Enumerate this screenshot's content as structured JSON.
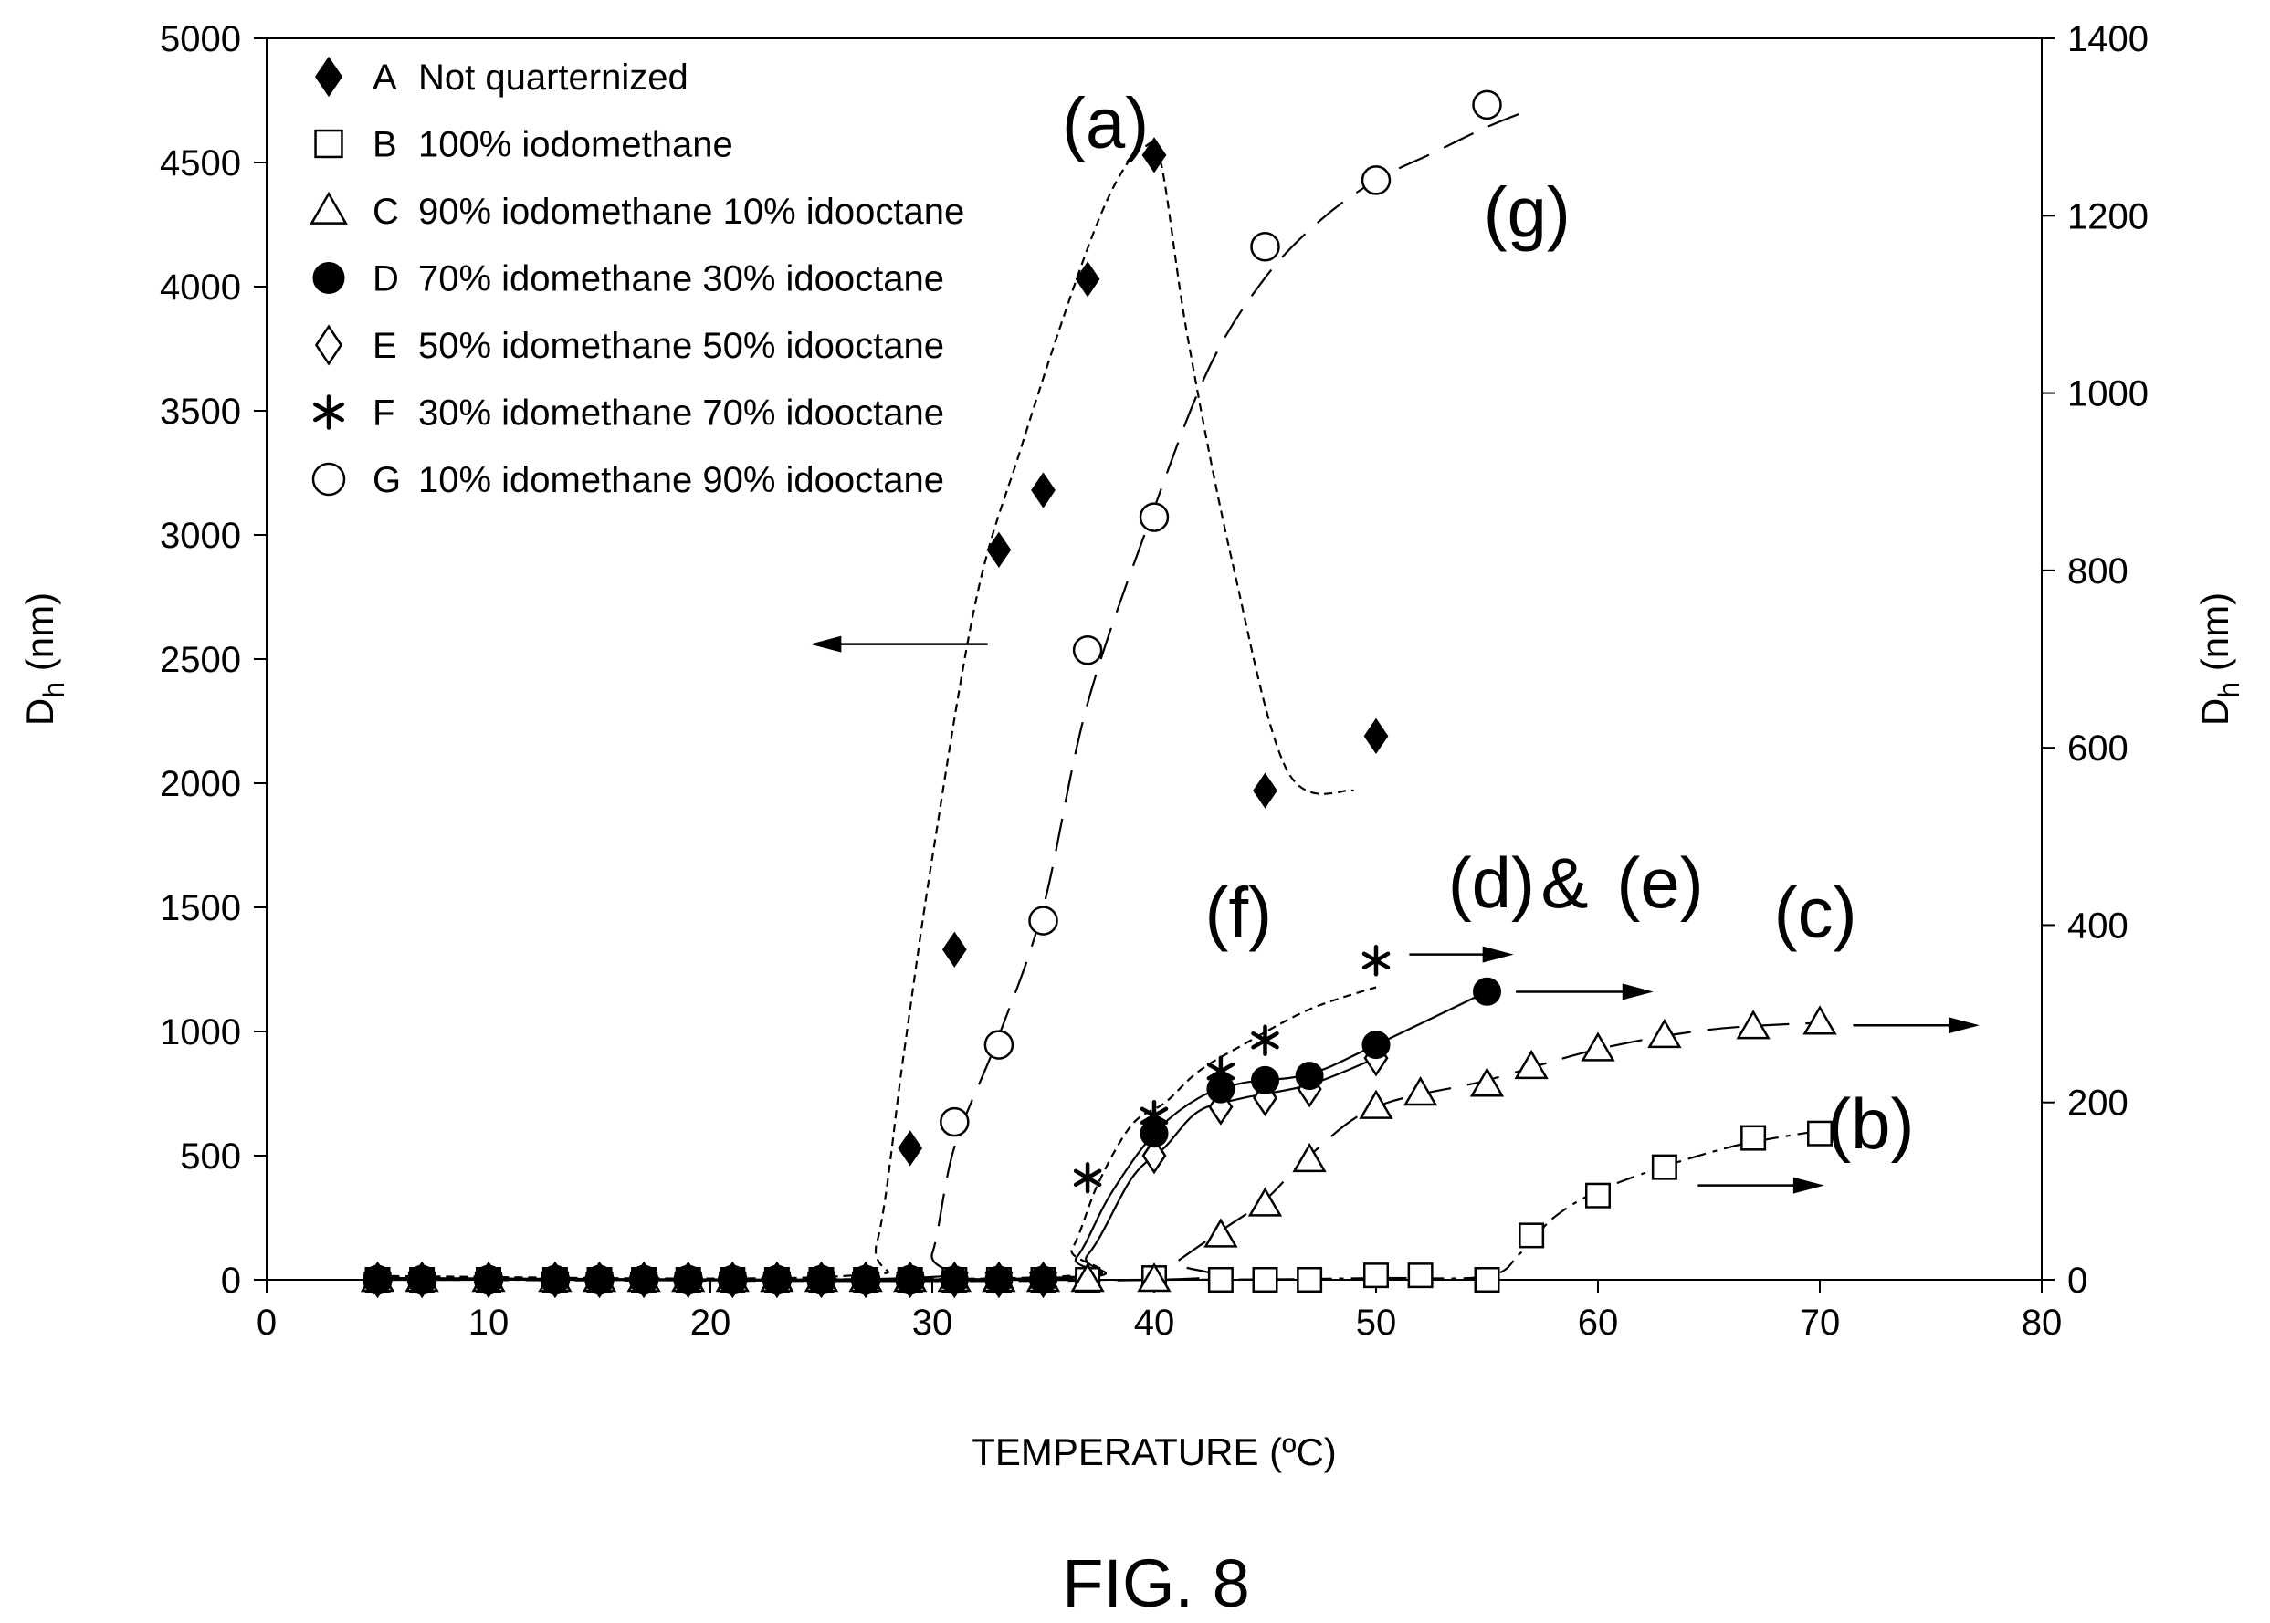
{
  "caption": "FIG. 8",
  "chart_data": {
    "type": "scatter",
    "xlabel": "TEMPERATURE (ºC)",
    "ylabel_left": "D",
    "ylabel_left_sub": "h",
    "ylabel_left_unit": " (nm)",
    "ylabel_right": "D",
    "ylabel_right_sub": "h",
    "ylabel_right_unit": " (nm)",
    "xlim": [
      0,
      80
    ],
    "ylim_left": [
      0,
      5000
    ],
    "ylim_right": [
      0,
      1400
    ],
    "x_ticks": [
      "0",
      "10",
      "20",
      "30",
      "40",
      "50",
      "60",
      "70",
      "80"
    ],
    "y_left_ticks": [
      "0",
      "500",
      "1000",
      "1500",
      "2000",
      "2500",
      "3000",
      "3500",
      "4000",
      "4500",
      "5000"
    ],
    "y_right_ticks": [
      "0",
      "200",
      "400",
      "600",
      "800",
      "1000",
      "1200",
      "1400"
    ],
    "grid": false,
    "legend_position": "top-left",
    "series": [
      {
        "id": "A",
        "name": "Not quarternized",
        "axis": "left",
        "marker": "filled-diamond",
        "x": [
          5,
          7,
          10,
          13,
          15,
          17,
          19,
          21,
          23,
          25,
          27,
          29,
          31,
          33,
          35,
          37,
          40,
          45,
          50
        ],
        "y": [
          0,
          0,
          0,
          0,
          0,
          0,
          0,
          0,
          0,
          0,
          0,
          530,
          1330,
          2940,
          3180,
          4030,
          4530,
          1970,
          2190
        ]
      },
      {
        "id": "B",
        "name": "100% iodomethane",
        "axis": "right",
        "marker": "open-square",
        "x": [
          5,
          7,
          10,
          13,
          15,
          17,
          19,
          21,
          23,
          25,
          27,
          29,
          31,
          33,
          35,
          37,
          40,
          43,
          45,
          47,
          50,
          52,
          55,
          57,
          60,
          63,
          67,
          70
        ],
        "y": [
          0,
          0,
          0,
          0,
          0,
          0,
          0,
          0,
          0,
          0,
          0,
          0,
          0,
          0,
          0,
          0,
          2,
          0,
          0,
          0,
          5,
          5,
          0,
          50,
          95,
          127,
          160,
          165
        ]
      },
      {
        "id": "C",
        "name": "90% iodomethane 10% idooctane",
        "axis": "right",
        "marker": "open-triangle",
        "x": [
          5,
          7,
          10,
          13,
          15,
          17,
          19,
          21,
          23,
          25,
          27,
          29,
          31,
          33,
          35,
          37,
          40,
          43,
          45,
          47,
          50,
          52,
          55,
          57,
          60,
          63,
          67,
          70
        ],
        "y": [
          0,
          0,
          0,
          0,
          0,
          0,
          0,
          0,
          0,
          0,
          0,
          0,
          0,
          0,
          0,
          0,
          0,
          50,
          85,
          135,
          195,
          210,
          220,
          240,
          260,
          275,
          285,
          290
        ]
      },
      {
        "id": "D",
        "name": "70% idomethane 30% idooctane",
        "axis": "right",
        "marker": "filled-circle",
        "x": [
          5,
          7,
          10,
          13,
          15,
          17,
          19,
          21,
          23,
          25,
          27,
          29,
          31,
          33,
          35,
          40,
          43,
          45,
          47,
          50,
          55
        ],
        "y": [
          0,
          0,
          0,
          0,
          0,
          0,
          0,
          0,
          0,
          0,
          0,
          0,
          0,
          0,
          0,
          165,
          215,
          225,
          230,
          265,
          325
        ]
      },
      {
        "id": "E",
        "name": "50% idomethane 50% idooctane",
        "axis": "right",
        "marker": "open-diamond",
        "x": [
          5,
          7,
          10,
          13,
          15,
          17,
          19,
          21,
          23,
          25,
          27,
          29,
          31,
          33,
          35,
          40,
          43,
          45,
          47,
          50
        ],
        "y": [
          0,
          0,
          0,
          0,
          0,
          0,
          0,
          0,
          0,
          0,
          0,
          0,
          0,
          0,
          0,
          140,
          195,
          205,
          215,
          250
        ]
      },
      {
        "id": "F",
        "name": "30% idomethane 70% idooctane",
        "axis": "right",
        "marker": "asterisk",
        "x": [
          5,
          7,
          10,
          13,
          15,
          17,
          19,
          21,
          23,
          25,
          27,
          29,
          31,
          33,
          35,
          37,
          40,
          43,
          45,
          50
        ],
        "y": [
          0,
          0,
          0,
          0,
          0,
          0,
          0,
          0,
          0,
          0,
          0,
          0,
          0,
          0,
          0,
          115,
          185,
          235,
          270,
          360
        ]
      },
      {
        "id": "G",
        "name": "10% idomethane 90% idooctane",
        "axis": "right",
        "marker": "open-circle",
        "x": [
          5,
          7,
          10,
          13,
          15,
          17,
          19,
          21,
          23,
          25,
          27,
          29,
          31,
          33,
          35,
          37,
          40,
          45,
          50,
          55
        ],
        "y": [
          0,
          0,
          0,
          0,
          0,
          0,
          0,
          0,
          0,
          0,
          0,
          0,
          178,
          265,
          405,
          710,
          860,
          1165,
          1240,
          1325
        ]
      }
    ],
    "annotations": [
      {
        "text": "(a)",
        "x": 37.8,
        "y_left": 4560
      },
      {
        "text": "(g)",
        "x": 56.8,
        "y_left": 4200
      },
      {
        "text": "(d)",
        "x": 55.2,
        "y_left": 1500
      },
      {
        "text": "&",
        "x": 58.5,
        "y_left": 1500
      },
      {
        "text": "(e)",
        "x": 62.8,
        "y_left": 1500
      },
      {
        "text": "(f)",
        "x": 43.8,
        "y_left": 1380
      },
      {
        "text": "(c)",
        "x": 69.8,
        "y_left": 1380
      },
      {
        "text": "(b)",
        "x": 72.3,
        "y_left": 530
      }
    ],
    "arrows": [
      {
        "from": [
          32.5,
          2560
        ],
        "to": [
          24.5,
          2560
        ],
        "axis": "left"
      },
      {
        "from": [
          51.5,
          1310
        ],
        "to": [
          56.2,
          1310
        ],
        "axis": "left"
      },
      {
        "from": [
          56.3,
          1160
        ],
        "to": [
          62.5,
          1160
        ],
        "axis": "left"
      },
      {
        "from": [
          71.5,
          1025
        ],
        "to": [
          77.2,
          1025
        ],
        "axis": "left"
      },
      {
        "from": [
          64.5,
          380
        ],
        "to": [
          70.2,
          380
        ],
        "axis": "left"
      }
    ],
    "curves": [
      {
        "series": "A",
        "style": "short-dash",
        "axis": "left",
        "x": [
          5,
          26,
          27.5,
          28.7,
          30,
          32,
          34,
          36,
          37.5,
          38.6,
          39.5,
          40.3,
          41.5,
          43.5,
          46,
          49
        ],
        "y": [
          15,
          15,
          150,
          900,
          1700,
          2750,
          3350,
          3900,
          4270,
          4470,
          4560,
          4500,
          3800,
          2900,
          2050,
          1970
        ]
      },
      {
        "series": "G",
        "style": "long-dash",
        "axis": "right",
        "x": [
          5,
          29,
          30,
          31,
          33,
          35,
          37,
          40,
          42.5,
          45,
          47.5,
          50,
          52.5,
          55,
          57
        ],
        "y": [
          2,
          2,
          30,
          150,
          275,
          420,
          650,
          870,
          1030,
          1130,
          1195,
          1240,
          1270,
          1300,
          1320
        ]
      },
      {
        "series": "B",
        "style": "dash-dot",
        "axis": "right",
        "x": [
          5,
          40,
          50,
          55,
          56.5,
          58,
          60,
          63,
          66,
          68,
          70
        ],
        "y": [
          0,
          0,
          2,
          4,
          30,
          70,
          100,
          128,
          150,
          160,
          168
        ]
      },
      {
        "series": "C",
        "style": "long-dash",
        "axis": "right",
        "x": [
          5,
          40,
          41,
          43,
          45,
          47,
          50,
          55,
          60,
          65,
          70
        ],
        "y": [
          0,
          0,
          20,
          55,
          90,
          140,
          195,
          225,
          260,
          282,
          290
        ]
      },
      {
        "series": "D",
        "style": "solid",
        "axis": "right",
        "x": [
          5,
          35,
          36.5,
          38,
          40,
          42,
          44,
          47,
          50,
          55
        ],
        "y": [
          2,
          2,
          25,
          95,
          165,
          205,
          222,
          232,
          265,
          325
        ]
      },
      {
        "series": "E",
        "style": "solid",
        "axis": "right",
        "x": [
          5,
          35,
          37,
          39,
          40.5,
          42,
          44,
          47,
          50
        ],
        "y": [
          1,
          1,
          28,
          115,
          150,
          190,
          205,
          220,
          250
        ]
      },
      {
        "series": "F",
        "style": "short-dash",
        "axis": "right",
        "x": [
          5,
          35,
          36.3,
          37.5,
          39,
          40.5,
          42,
          44,
          47,
          50
        ],
        "y": [
          3,
          3,
          35,
          110,
          175,
          200,
          235,
          265,
          305,
          330
        ]
      }
    ]
  }
}
